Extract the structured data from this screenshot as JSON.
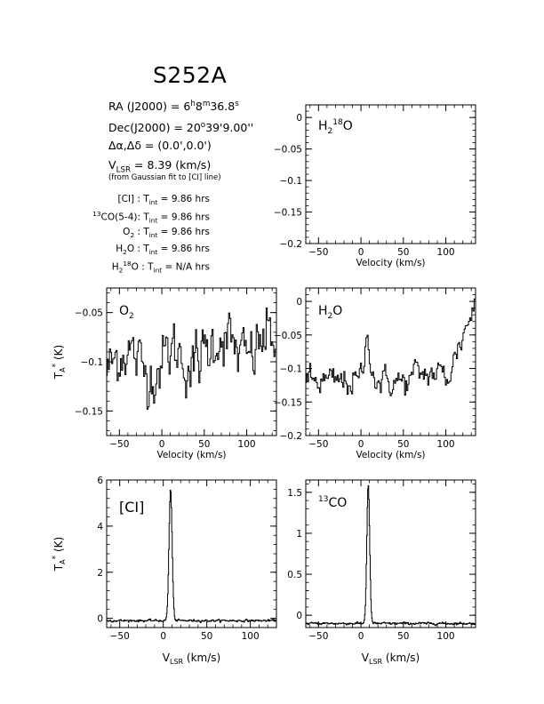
{
  "header": {
    "title": "S252A",
    "ra": "RA (J2000) = 6h8m36.8s",
    "ra_parts": {
      "lead": "RA (J2000) =  6",
      "h": "h",
      "m_val": "8",
      "m": "m",
      "s_val": "36.8",
      "s": "s"
    },
    "dec_parts": {
      "lead": "Dec(J2000) =  20",
      "deg": "o",
      "rest": "39'9.00''"
    },
    "offset": "Δα,Δδ = (0.0',0.0')",
    "vlsr_parts": {
      "v": "V",
      "sub": "LSR",
      "rest": " = 8.39 (km/s)"
    },
    "vlsr_note": "(from Gaussian fit to [CI] line)",
    "integrations": [
      {
        "species_html": "[CI]",
        "tint": "9.86 hrs"
      },
      {
        "species_html": "13CO(5-4)",
        "tint": "9.86 hrs"
      },
      {
        "species_html": "O2",
        "tint": "9.86 hrs"
      },
      {
        "species_html": "H2O",
        "tint": "9.86 hrs"
      },
      {
        "species_html": "H218O",
        "tint": "N/A hrs"
      }
    ],
    "tint_label": "T",
    "tint_sub": "int"
  },
  "chart_data": [
    {
      "id": "h218o",
      "type": "line",
      "label": "H2 18O",
      "xlabel": "Velocity (km/s)",
      "ylabel": "",
      "xlim": [
        -65,
        135
      ],
      "ylim": [
        -0.2,
        0.02
      ],
      "xticks": [
        -50,
        0,
        50,
        100
      ],
      "yticks": [
        0,
        -0.05,
        -0.1,
        -0.15,
        -0.2
      ],
      "ytick_labels": [
        "0",
        "−0.05",
        "−0.1",
        "−0.15",
        "−0.2"
      ],
      "series": []
    },
    {
      "id": "o2",
      "type": "line",
      "label": "O2",
      "xlabel": "Velocity (km/s)",
      "ylabel": "T*A (K)",
      "xlim": [
        -65,
        135
      ],
      "ylim": [
        -0.175,
        -0.025
      ],
      "xticks": [
        -50,
        0,
        50,
        100
      ],
      "yticks": [
        -0.05,
        -0.1,
        -0.15
      ],
      "ytick_labels": [
        "−0.05",
        "−0.1",
        "−0.15"
      ],
      "series": [
        {
          "mean": -0.1,
          "noise": 0.025,
          "baseline_slope": 0.0
        }
      ]
    },
    {
      "id": "h2o",
      "type": "line",
      "label": "H2O",
      "xlabel": "Velocity (km/s)",
      "ylabel": "",
      "xlim": [
        -65,
        135
      ],
      "ylim": [
        -0.2,
        0.02
      ],
      "xticks": [
        -50,
        0,
        50,
        100
      ],
      "yticks": [
        0,
        -0.05,
        -0.1,
        -0.15,
        -0.2
      ],
      "ytick_labels": [
        "0",
        "−0.05",
        "−0.1",
        "−0.15",
        "−0.2"
      ],
      "series": [
        {
          "mean": -0.12,
          "noise": 0.018,
          "peak_x": 8,
          "peak_amp": 0.06,
          "peak_width": 4,
          "rise_start": 100,
          "rise_end": 135,
          "rise_amp": 0.12
        }
      ]
    },
    {
      "id": "ci",
      "type": "line",
      "label": "[CI]",
      "xlabel": "VLSR (km/s)",
      "ylabel": "T*A (K)",
      "xlim": [
        -65,
        130
      ],
      "ylim": [
        -0.4,
        6
      ],
      "xticks": [
        -50,
        0,
        50,
        100
      ],
      "yticks": [
        0,
        2,
        4,
        6
      ],
      "ytick_labels": [
        "0",
        "2",
        "4",
        "6"
      ],
      "series": [
        {
          "mean": -0.1,
          "noise": 0.04,
          "peak_x": 8.4,
          "peak_amp": 5.7,
          "peak_width": 1.8
        }
      ]
    },
    {
      "id": "13co",
      "type": "line",
      "label": "13CO",
      "xlabel": "VLSR (km/s)",
      "ylabel": "",
      "xlim": [
        -65,
        135
      ],
      "ylim": [
        -0.15,
        1.65
      ],
      "xticks": [
        -50,
        0,
        50,
        100
      ],
      "yticks": [
        0,
        0.5,
        1,
        1.5
      ],
      "ytick_labels": [
        "0",
        "0.5",
        "1",
        "1.5"
      ],
      "series": [
        {
          "mean": -0.1,
          "noise": 0.012,
          "peak_x": 8.6,
          "peak_amp": 1.68,
          "peak_width": 1.7
        }
      ]
    }
  ]
}
